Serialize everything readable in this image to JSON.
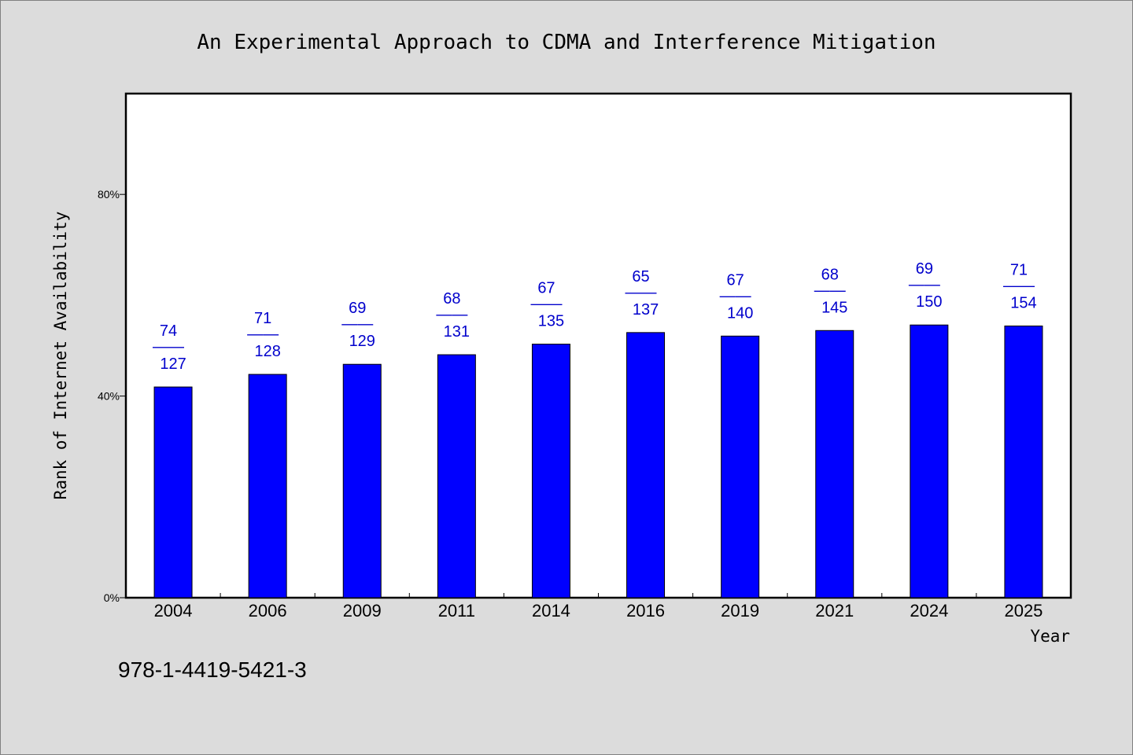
{
  "chart_data": {
    "type": "bar",
    "title": "An Experimental Approach to CDMA and Interference Mitigation",
    "xlabel": "Year",
    "ylabel": "Rank of Internet Availability",
    "ylim": [
      0,
      100
    ],
    "yticks": [
      0,
      40,
      80
    ],
    "ytick_labels": [
      "0%",
      "40%",
      "80%"
    ],
    "categories": [
      "2004",
      "2006",
      "2009",
      "2011",
      "2014",
      "2016",
      "2019",
      "2021",
      "2024",
      "2025"
    ],
    "values": [
      41.8,
      44.3,
      46.3,
      48.2,
      50.3,
      52.6,
      51.9,
      53.0,
      54.1,
      53.9
    ],
    "data_labels": [
      {
        "top": "74",
        "sep": "——",
        "bottom": "127"
      },
      {
        "top": "71",
        "sep": "——",
        "bottom": "128"
      },
      {
        "top": "69",
        "sep": "——",
        "bottom": "129"
      },
      {
        "top": "68",
        "sep": "——",
        "bottom": "131"
      },
      {
        "top": "67",
        "sep": "——",
        "bottom": "135"
      },
      {
        "top": "65",
        "sep": "——",
        "bottom": "137"
      },
      {
        "top": "67",
        "sep": "——",
        "bottom": "140"
      },
      {
        "top": "68",
        "sep": "——",
        "bottom": "145"
      },
      {
        "top": "69",
        "sep": "——",
        "bottom": "150"
      },
      {
        "top": "71",
        "sep": "——",
        "bottom": "154"
      }
    ],
    "bar_color": "#0000ff",
    "label_color": "#0000cc",
    "grid": false,
    "legend": "none"
  },
  "footnote": "978-1-4419-5421-3"
}
